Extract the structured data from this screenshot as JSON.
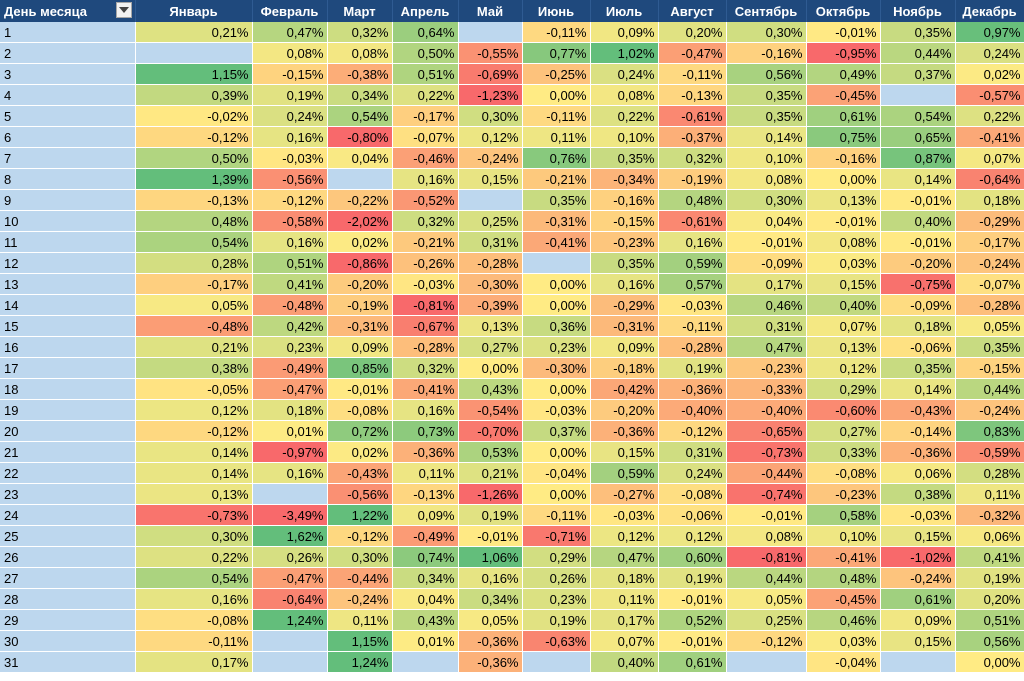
{
  "header": {
    "day_label": "День месяца",
    "months": [
      "Январь",
      "Февраль",
      "Март",
      "Апрель",
      "Май",
      "Июнь",
      "Июль",
      "Август",
      "Сентябрь",
      "Октябрь",
      "Ноябрь",
      "Декабрь"
    ]
  },
  "rows": [
    [
      "1",
      "0,21%",
      "0,47%",
      "0,32%",
      "0,64%",
      "",
      "-0,11%",
      "0,09%",
      "0,20%",
      "0,30%",
      "-0,01%",
      "0,35%",
      "0,97%"
    ],
    [
      "2",
      "",
      "0,08%",
      "0,08%",
      "0,50%",
      "-0,55%",
      "0,77%",
      "1,02%",
      "-0,47%",
      "-0,16%",
      "-0,95%",
      "0,44%",
      "0,24%"
    ],
    [
      "3",
      "1,15%",
      "-0,15%",
      "-0,38%",
      "0,51%",
      "-0,69%",
      "-0,25%",
      "0,24%",
      "-0,11%",
      "0,56%",
      "0,49%",
      "0,37%",
      "0,02%"
    ],
    [
      "4",
      "0,39%",
      "0,19%",
      "0,34%",
      "0,22%",
      "-1,23%",
      "0,00%",
      "0,08%",
      "-0,13%",
      "0,35%",
      "-0,45%",
      "",
      "-0,57%"
    ],
    [
      "5",
      "-0,02%",
      "0,24%",
      "0,54%",
      "-0,17%",
      "0,30%",
      "-0,11%",
      "0,22%",
      "-0,61%",
      "0,35%",
      "0,61%",
      "0,54%",
      "0,22%"
    ],
    [
      "6",
      "-0,12%",
      "0,16%",
      "-0,80%",
      "-0,07%",
      "0,12%",
      "0,11%",
      "0,10%",
      "-0,37%",
      "0,14%",
      "0,75%",
      "0,65%",
      "-0,41%"
    ],
    [
      "7",
      "0,50%",
      "-0,03%",
      "0,04%",
      "-0,46%",
      "-0,24%",
      "0,76%",
      "0,35%",
      "0,32%",
      "0,10%",
      "-0,16%",
      "0,87%",
      "0,07%"
    ],
    [
      "8",
      "1,39%",
      "-0,56%",
      "",
      "0,16%",
      "0,15%",
      "-0,21%",
      "-0,34%",
      "-0,19%",
      "0,08%",
      "0,00%",
      "0,14%",
      "-0,64%"
    ],
    [
      "9",
      "-0,13%",
      "-0,12%",
      "-0,22%",
      "-0,52%",
      "",
      "0,35%",
      "-0,16%",
      "0,48%",
      "0,30%",
      "0,13%",
      "-0,01%",
      "0,18%"
    ],
    [
      "10",
      "0,48%",
      "-0,58%",
      "-2,02%",
      "0,32%",
      "0,25%",
      "-0,31%",
      "-0,15%",
      "-0,61%",
      "0,04%",
      "-0,01%",
      "0,40%",
      "-0,29%"
    ],
    [
      "11",
      "0,54%",
      "0,16%",
      "0,02%",
      "-0,21%",
      "0,31%",
      "-0,41%",
      "-0,23%",
      "0,16%",
      "-0,01%",
      "0,08%",
      "-0,01%",
      "-0,17%"
    ],
    [
      "12",
      "0,28%",
      "0,51%",
      "-0,86%",
      "-0,26%",
      "-0,28%",
      "",
      "0,35%",
      "0,59%",
      "-0,09%",
      "0,03%",
      "-0,20%",
      "-0,24%"
    ],
    [
      "13",
      "-0,17%",
      "0,41%",
      "-0,20%",
      "-0,03%",
      "-0,30%",
      "0,00%",
      "0,16%",
      "0,57%",
      "0,17%",
      "0,15%",
      "-0,75%",
      "-0,07%"
    ],
    [
      "14",
      "0,05%",
      "-0,48%",
      "-0,19%",
      "-0,81%",
      "-0,39%",
      "0,00%",
      "-0,29%",
      "-0,03%",
      "0,46%",
      "0,40%",
      "-0,09%",
      "-0,28%"
    ],
    [
      "15",
      "-0,48%",
      "0,42%",
      "-0,31%",
      "-0,67%",
      "0,13%",
      "0,36%",
      "-0,31%",
      "-0,11%",
      "0,31%",
      "0,07%",
      "0,18%",
      "0,05%"
    ],
    [
      "16",
      "0,21%",
      "0,23%",
      "0,09%",
      "-0,28%",
      "0,27%",
      "0,23%",
      "0,09%",
      "-0,28%",
      "0,47%",
      "0,13%",
      "-0,06%",
      "0,35%"
    ],
    [
      "17",
      "0,38%",
      "-0,49%",
      "0,85%",
      "0,32%",
      "0,00%",
      "-0,30%",
      "-0,18%",
      "0,19%",
      "-0,23%",
      "0,12%",
      "0,35%",
      "-0,15%"
    ],
    [
      "18",
      "-0,05%",
      "-0,47%",
      "-0,01%",
      "-0,41%",
      "0,43%",
      "0,00%",
      "-0,42%",
      "-0,36%",
      "-0,33%",
      "0,29%",
      "0,14%",
      "0,44%"
    ],
    [
      "19",
      "0,12%",
      "0,18%",
      "-0,08%",
      "0,16%",
      "-0,54%",
      "-0,03%",
      "-0,20%",
      "-0,40%",
      "-0,40%",
      "-0,60%",
      "-0,43%",
      "-0,24%"
    ],
    [
      "20",
      "-0,12%",
      "0,01%",
      "0,72%",
      "0,73%",
      "-0,70%",
      "0,37%",
      "-0,36%",
      "-0,12%",
      "-0,65%",
      "0,27%",
      "-0,14%",
      "0,83%"
    ],
    [
      "21",
      "0,14%",
      "-0,97%",
      "0,02%",
      "-0,36%",
      "0,53%",
      "0,00%",
      "0,15%",
      "0,31%",
      "-0,73%",
      "0,33%",
      "-0,36%",
      "-0,59%"
    ],
    [
      "22",
      "0,14%",
      "0,16%",
      "-0,43%",
      "0,11%",
      "0,21%",
      "-0,04%",
      "0,59%",
      "0,24%",
      "-0,44%",
      "-0,08%",
      "0,06%",
      "0,28%"
    ],
    [
      "23",
      "0,13%",
      "",
      "-0,56%",
      "-0,13%",
      "-1,26%",
      "0,00%",
      "-0,27%",
      "-0,08%",
      "-0,74%",
      "-0,23%",
      "0,38%",
      "0,11%"
    ],
    [
      "24",
      "-0,73%",
      "-3,49%",
      "1,22%",
      "0,09%",
      "0,19%",
      "-0,11%",
      "-0,03%",
      "-0,06%",
      "-0,01%",
      "0,58%",
      "-0,03%",
      "-0,32%"
    ],
    [
      "25",
      "0,30%",
      "1,62%",
      "-0,12%",
      "-0,49%",
      "-0,01%",
      "-0,71%",
      "0,12%",
      "0,12%",
      "0,08%",
      "0,10%",
      "0,15%",
      "0,06%"
    ],
    [
      "26",
      "0,22%",
      "0,26%",
      "0,30%",
      "0,74%",
      "1,06%",
      "0,29%",
      "0,47%",
      "0,60%",
      "-0,81%",
      "-0,41%",
      "-1,02%",
      "0,41%"
    ],
    [
      "27",
      "0,54%",
      "-0,47%",
      "-0,44%",
      "0,34%",
      "0,16%",
      "0,26%",
      "0,18%",
      "0,19%",
      "0,44%",
      "0,48%",
      "-0,24%",
      "0,19%"
    ],
    [
      "28",
      "0,16%",
      "-0,64%",
      "-0,24%",
      "0,04%",
      "0,34%",
      "0,23%",
      "0,11%",
      "-0,01%",
      "0,05%",
      "-0,45%",
      "0,61%",
      "0,20%"
    ],
    [
      "29",
      "-0,08%",
      "1,24%",
      "0,11%",
      "0,43%",
      "0,05%",
      "0,19%",
      "0,17%",
      "0,52%",
      "0,25%",
      "0,46%",
      "0,09%",
      "0,51%"
    ],
    [
      "30",
      "-0,11%",
      "",
      "1,15%",
      "0,01%",
      "-0,36%",
      "-0,63%",
      "0,07%",
      "-0,01%",
      "-0,12%",
      "0,03%",
      "0,15%",
      "0,56%"
    ],
    [
      "31",
      "0,17%",
      "",
      "1,24%",
      "",
      "-0,36%",
      "",
      "0,40%",
      "0,61%",
      "",
      "-0,04%",
      "",
      "0,00%"
    ]
  ],
  "colors": {
    "header_bg": "#1f497d",
    "header_text": "#ffffff",
    "day_column_bg": "#bdd7ee",
    "empty_cell_bg": "#bdd7ee",
    "scale_negative": "#f8696b",
    "scale_neutral": "#ffeb84",
    "scale_positive": "#63be7b"
  },
  "icons": {
    "filter": "dropdown-arrow-icon"
  }
}
